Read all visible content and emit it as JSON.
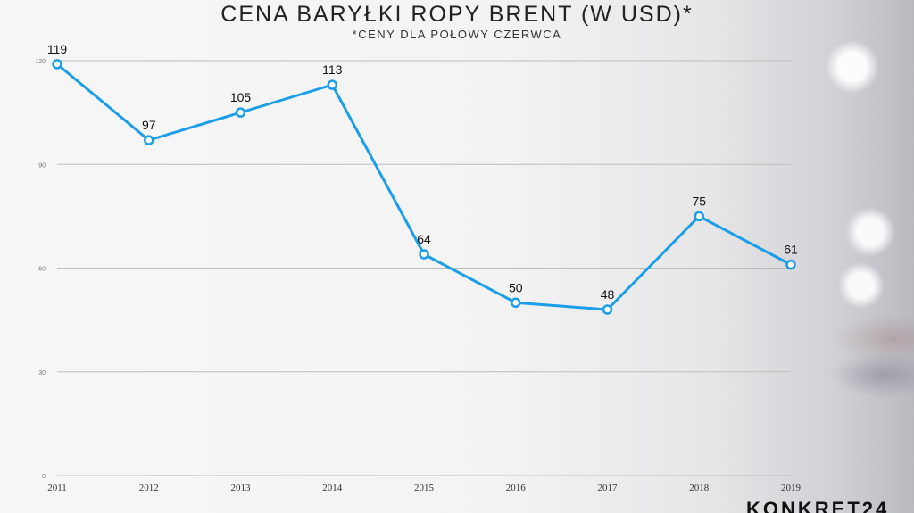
{
  "header": {
    "title": "CENA BARYŁKI ROPY BRENT (W USD)*",
    "subtitle": "*CENY DLA POŁOWY CZERWCA"
  },
  "colors": {
    "line": "#1a9ee8",
    "grid": "#bdbdbd",
    "marker_fill": "#ffffff"
  },
  "chart_data": {
    "type": "line",
    "title": "CENA BARYŁKI ROPY BRENT (W USD)*",
    "subtitle": "*CENY DLA POŁOWY CZERWCA",
    "categories": [
      "2011",
      "2012",
      "2013",
      "2014",
      "2015",
      "2016",
      "2017",
      "2018",
      "2019"
    ],
    "series": [
      {
        "values": [
          119,
          97,
          105,
          113,
          64,
          50,
          48,
          75,
          61
        ]
      }
    ],
    "data_labels": [
      "119",
      "97",
      "105",
      "113",
      "64",
      "50",
      "48",
      "75",
      "61"
    ],
    "yticks": [
      0,
      30,
      60,
      90,
      120
    ],
    "ytick_labels": [
      "0",
      "30",
      "60",
      "90",
      "120"
    ],
    "ylim": [
      0,
      120
    ],
    "grid": true,
    "legend": "none"
  },
  "logo": {
    "text": "KONKRET24"
  }
}
